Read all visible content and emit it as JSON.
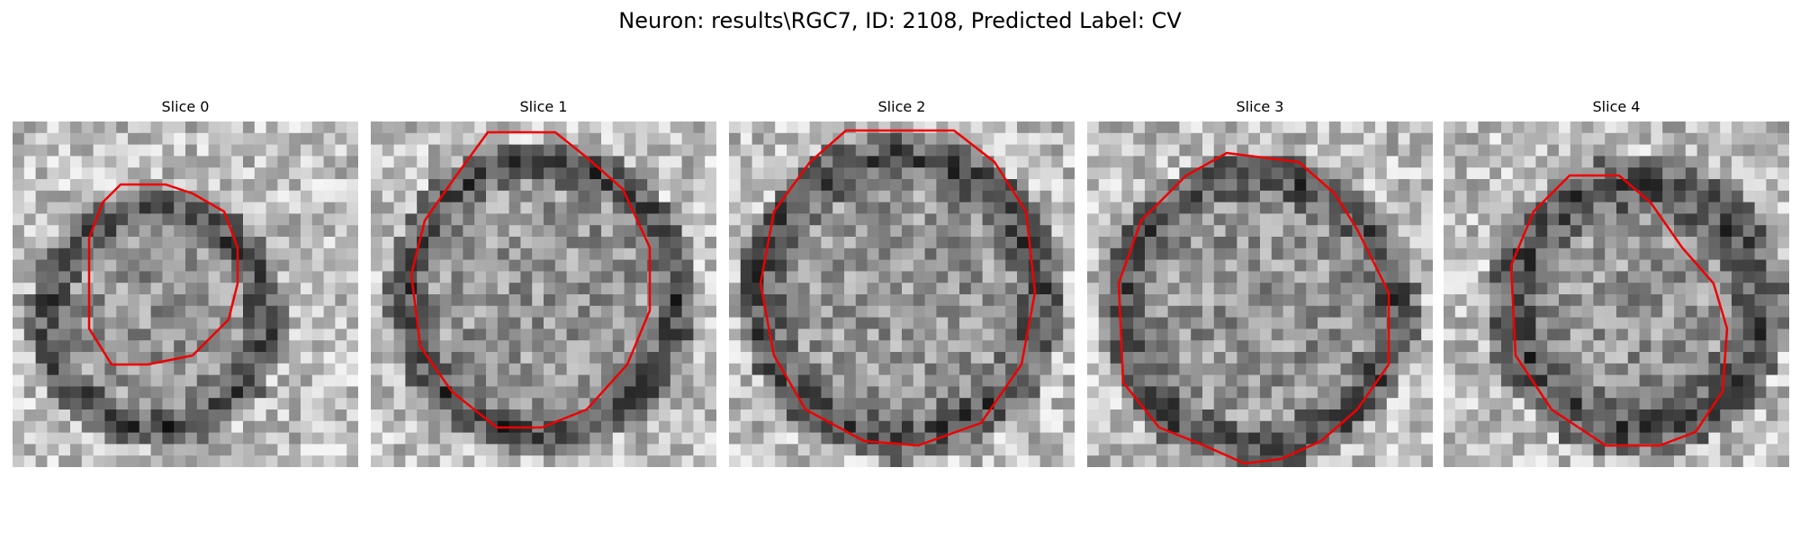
{
  "figure": {
    "title": "Neuron: results\\RGC7, ID: 2108, Predicted Label: CV"
  },
  "panels": [
    {
      "title": "Slice 0",
      "image_icon": "grayscale-cell-slice-image",
      "contour_color": "#ee0000"
    },
    {
      "title": "Slice 1",
      "image_icon": "grayscale-cell-slice-image",
      "contour_color": "#ee0000"
    },
    {
      "title": "Slice 2",
      "image_icon": "grayscale-cell-slice-image",
      "contour_color": "#ee0000"
    },
    {
      "title": "Slice 3",
      "image_icon": "grayscale-cell-slice-image",
      "contour_color": "#ee0000"
    },
    {
      "title": "Slice 4",
      "image_icon": "grayscale-cell-slice-image",
      "contour_color": "#ee0000"
    }
  ],
  "colors": {
    "background": "#ffffff",
    "contour": "#ee0000"
  }
}
